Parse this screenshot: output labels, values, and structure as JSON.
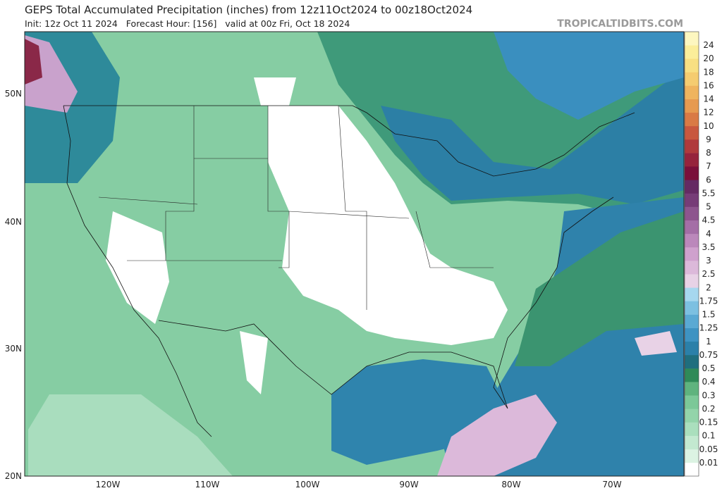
{
  "header": {
    "title": "GEPS Total Accumulated Precipitation (inches) from 12z11Oct2024 to 00z18Oct2024",
    "subtitle": "Init: 12z Oct 11 2024   Forecast Hour: [156]   valid at 00z Fri, Oct 18 2024",
    "credit": "TROPICALTIDBITS.COM"
  },
  "axes": {
    "lat": [
      "50N",
      "40N",
      "30N",
      "20N"
    ],
    "lon": [
      "120W",
      "110W",
      "100W",
      "90W",
      "80W",
      "70W"
    ]
  },
  "legend": {
    "labels": [
      "0.01",
      "0.05",
      "0.1",
      "0.15",
      "0.2",
      "0.3",
      "0.4",
      "0.5",
      "0.75",
      "1",
      "1.25",
      "1.5",
      "1.75",
      "2",
      "2.5",
      "3",
      "3.5",
      "4",
      "4.5",
      "5",
      "5.5",
      "6",
      "7",
      "8",
      "9",
      "10",
      "12",
      "14",
      "16",
      "18",
      "20",
      "24"
    ],
    "colors": [
      "#ffffff",
      "#dcf3e3",
      "#c3e9d0",
      "#aadfbd",
      "#93d4aa",
      "#7cc898",
      "#5fb37e",
      "#2f8a58",
      "#1f6e7e",
      "#2b80a9",
      "#3e93c2",
      "#5aa9d3",
      "#7cc0e1",
      "#a6d7ef",
      "#e8d2e6",
      "#dcb9da",
      "#cfa1cd",
      "#bb88bb",
      "#a46ea6",
      "#8d558e",
      "#763c77",
      "#652a63",
      "#7a0f3a",
      "#96233c",
      "#b03a3c",
      "#c8583f",
      "#d97a45",
      "#e69a50",
      "#efb45e",
      "#f5cc70",
      "#f8df82",
      "#fbee9a",
      "#fdf7c0"
    ]
  }
}
